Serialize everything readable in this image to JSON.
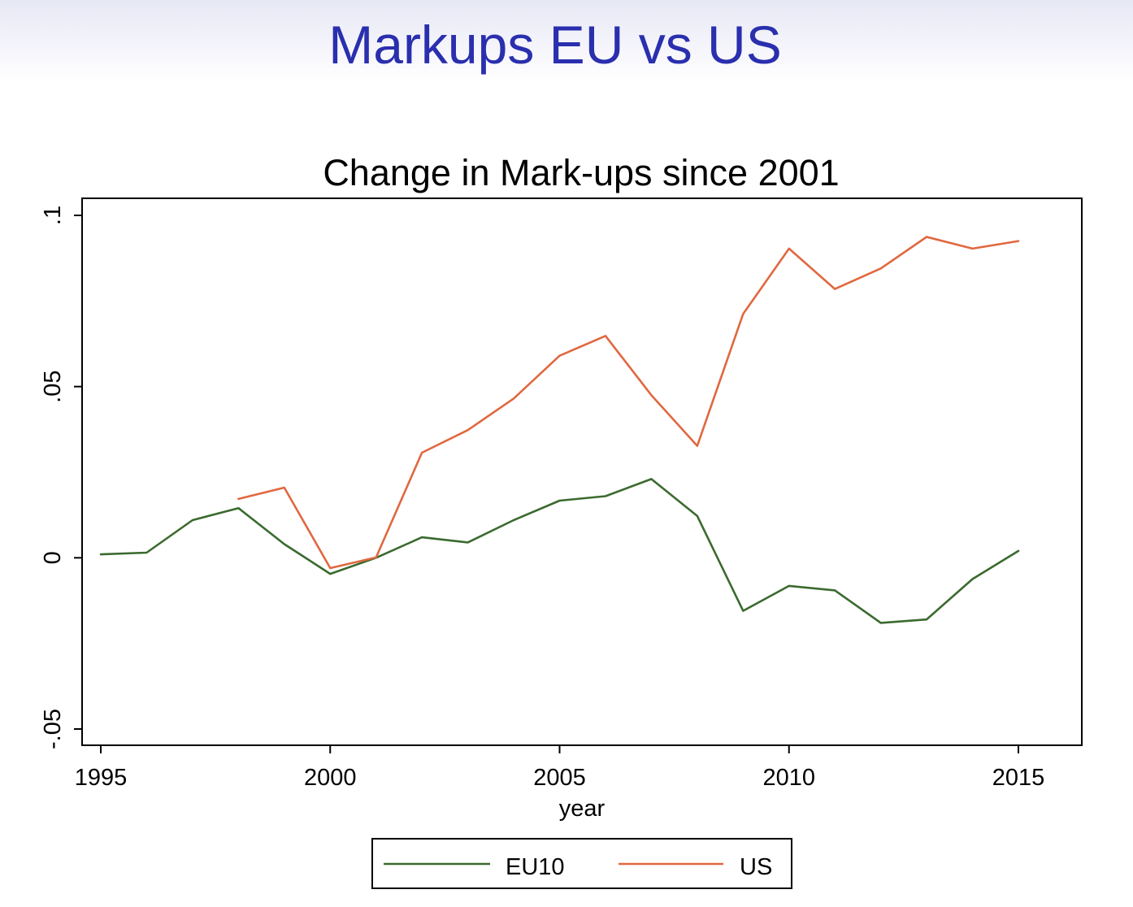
{
  "slide": {
    "title": "Markups EU vs US"
  },
  "chart_data": {
    "type": "line",
    "title": "Change in Mark-ups since 2001",
    "xlabel": "year",
    "ylabel": "",
    "xlim": [
      1995,
      2015
    ],
    "ylim": [
      -0.05,
      0.1
    ],
    "xticks": [
      {
        "value": 1995,
        "label": "1995"
      },
      {
        "value": 2000,
        "label": "2000"
      },
      {
        "value": 2005,
        "label": "2005"
      },
      {
        "value": 2010,
        "label": "2010"
      },
      {
        "value": 2015,
        "label": "2015"
      }
    ],
    "yticks": [
      {
        "value": -0.05,
        "label": "-.05"
      },
      {
        "value": 0,
        "label": "0"
      },
      {
        "value": 0.05,
        "label": ".05"
      },
      {
        "value": 0.1,
        "label": ".1"
      }
    ],
    "grid": false,
    "legend_position": "bottom",
    "series": [
      {
        "name": "EU10",
        "color": "#3b6a2f",
        "x": [
          1995,
          1996,
          1997,
          1998,
          1999,
          2000,
          2001,
          2002,
          2003,
          2004,
          2005,
          2006,
          2007,
          2008,
          2009,
          2010,
          2011,
          2012,
          2013,
          2014,
          2015
        ],
        "y": [
          0.001,
          0.0015,
          0.011,
          0.0145,
          0.004,
          -0.0047,
          0.0,
          0.006,
          0.0045,
          0.011,
          0.0167,
          0.018,
          0.023,
          0.0122,
          -0.0155,
          -0.0082,
          -0.0095,
          -0.019,
          -0.018,
          -0.0062,
          0.002
        ]
      },
      {
        "name": "US",
        "color": "#e06840",
        "x": [
          1998,
          1999,
          2000,
          2001,
          2002,
          2003,
          2004,
          2005,
          2006,
          2007,
          2008,
          2009,
          2010,
          2011,
          2012,
          2013,
          2014,
          2015
        ],
        "y": [
          0.0172,
          0.0205,
          -0.003,
          0.0001,
          0.0307,
          0.0373,
          0.0465,
          0.059,
          0.0648,
          0.0475,
          0.0327,
          0.0712,
          0.0903,
          0.0785,
          0.0845,
          0.0937,
          0.0903,
          0.0925
        ]
      }
    ]
  }
}
